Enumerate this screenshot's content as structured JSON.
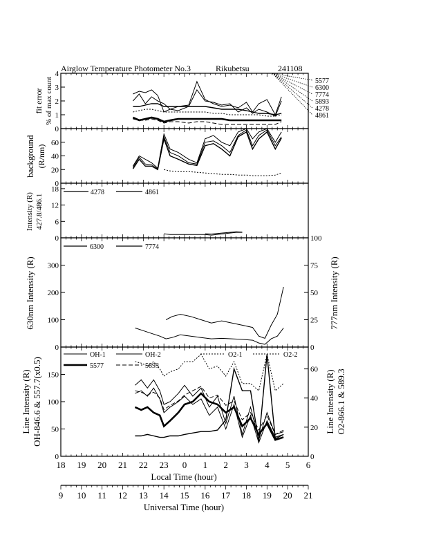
{
  "header": {
    "title": "Airglow Temperature Photometer No.3",
    "station": "Rikubetsu",
    "date": "241108"
  },
  "chart_data": [
    {
      "type": "line",
      "panel": "fit-error",
      "ylabel_lines": [
        "fit error",
        "% of max count"
      ],
      "ylim": [
        0,
        4
      ],
      "yticks": [
        0,
        1,
        2,
        3,
        4
      ],
      "right_labels": [
        "5577",
        "6300",
        "7774",
        "5893",
        "4278",
        "4861"
      ],
      "x": [
        21.5,
        21.8,
        22.1,
        22.4,
        22.7,
        23.0,
        23.3,
        23.7,
        24.2,
        24.6,
        25.0,
        25.4,
        25.8,
        26.2,
        26.6,
        27.0,
        27.3,
        27.6,
        28.0,
        28.4,
        28.7
      ],
      "series": [
        {
          "values": [
            2.5,
            2.7,
            2.6,
            2.8,
            2.4,
            1.2,
            1.4,
            1.6,
            1.7,
            3.4,
            2.1,
            1.8,
            1.6,
            1.7,
            1.5,
            1.9,
            1.2,
            1.8,
            2.1,
            1.0,
            2.3
          ]
        },
        {
          "values": [
            2.0,
            2.5,
            1.8,
            2.3,
            2.0,
            1.8,
            1.4,
            1.3,
            1.6,
            2.8,
            2.0,
            1.9,
            1.7,
            1.8,
            1.2,
            1.5,
            1.1,
            1.4,
            1.2,
            0.9,
            2.0
          ]
        },
        {
          "values": [
            1.6,
            1.6,
            1.7,
            1.8,
            1.8,
            1.6,
            1.6,
            1.6,
            1.6,
            1.6,
            1.6,
            1.5,
            1.4,
            1.4,
            1.4,
            1.3,
            1.2,
            1.1,
            1.1,
            1.0,
            1.1
          ]
        },
        {
          "values": [
            1.2,
            1.3,
            1.4,
            1.4,
            1.3,
            1.2,
            1.2,
            1.2,
            1.2,
            1.2,
            1.2,
            1.1,
            1.1,
            1.0,
            1.0,
            1.0,
            1.0,
            1.0,
            0.9,
            0.9,
            1.0
          ]
        },
        {
          "values": [
            0.8,
            0.6,
            0.7,
            0.8,
            0.7,
            0.5,
            0.6,
            0.7,
            0.7,
            0.7,
            0.7,
            0.7,
            0.7,
            0.6,
            0.6,
            0.6,
            0.6,
            0.6,
            0.6,
            0.6,
            0.6
          ]
        },
        {
          "values": [
            0.7,
            0.6,
            0.6,
            0.7,
            0.6,
            0.4,
            0.5,
            0.5,
            0.4,
            0.5,
            0.5,
            0.4,
            0.3,
            0.3,
            0.3,
            0.3,
            0.3,
            0.3,
            0.3,
            0.3,
            0.5
          ]
        }
      ]
    },
    {
      "type": "line",
      "panel": "background",
      "ylabel_lines": [
        "background",
        "(R/nm)"
      ],
      "ylim": [
        0,
        80
      ],
      "yticks": [
        0,
        20,
        40,
        60
      ],
      "x": [
        21.5,
        21.8,
        22.1,
        22.4,
        22.7,
        23.0,
        23.3,
        23.7,
        24.2,
        24.6,
        25.0,
        25.4,
        25.8,
        26.2,
        26.6,
        27.0,
        27.3,
        27.6,
        28.0,
        28.4,
        28.7
      ],
      "series": [
        {
          "values": [
            25,
            40,
            35,
            30,
            22,
            72,
            50,
            45,
            35,
            30,
            65,
            70,
            60,
            55,
            75,
            80,
            65,
            75,
            80,
            60,
            75
          ]
        },
        {
          "values": [
            23,
            38,
            28,
            27,
            21,
            68,
            45,
            40,
            30,
            28,
            60,
            62,
            55,
            45,
            70,
            78,
            55,
            70,
            78,
            55,
            68
          ]
        },
        {
          "values": [
            21,
            35,
            25,
            25,
            20,
            65,
            40,
            35,
            28,
            26,
            55,
            58,
            50,
            40,
            68,
            75,
            50,
            65,
            75,
            50,
            66
          ]
        },
        {
          "values": [
            null,
            null,
            null,
            null,
            null,
            20,
            18,
            17,
            17,
            16,
            15,
            14,
            13,
            13,
            12,
            12,
            11,
            11,
            11,
            12,
            15
          ]
        }
      ]
    },
    {
      "type": "line",
      "panel": "blue-lines",
      "ylabel_lines": [
        "Intensity (R)",
        "427.8/486.1"
      ],
      "ylim": [
        0,
        20
      ],
      "yticks": [
        0,
        6,
        12,
        18
      ],
      "legend": [
        "4278",
        "4861"
      ],
      "x": [
        23.0,
        23.3,
        25.0,
        25.3,
        26.5,
        26.8
      ],
      "series": [
        {
          "values": [
            1.5,
            1.2,
            1.2,
            1.0,
            2.0,
            2.0
          ]
        },
        {
          "values": [
            null,
            null,
            1.5,
            1.4,
            2.2,
            2.1
          ]
        }
      ]
    },
    {
      "type": "line",
      "panel": "red-lines",
      "ylabel_left": "630nm Intensity (R)",
      "ylabel_right": "777nm Intensity (R)",
      "ylim_left": [
        0,
        400
      ],
      "yticks_left": [
        0,
        100,
        200,
        300
      ],
      "ylim_right": [
        0,
        100
      ],
      "yticks_right": [
        0,
        25,
        50,
        75,
        100
      ],
      "legend": [
        "6300",
        "7774"
      ],
      "x": [
        21.6,
        22.0,
        22.4,
        22.8,
        23.1,
        23.4,
        23.8,
        24.3,
        24.8,
        25.3,
        25.8,
        26.3,
        26.8,
        27.3,
        27.6,
        27.9,
        28.2,
        28.5,
        28.8
      ],
      "series": [
        {
          "values": [
            70,
            60,
            50,
            40,
            30,
            35,
            45,
            40,
            35,
            30,
            32,
            30,
            28,
            25,
            15,
            10,
            30,
            40,
            70
          ]
        },
        {
          "values": [
            null,
            null,
            null,
            null,
            25,
            28,
            30,
            28,
            25,
            22,
            24,
            22,
            20,
            18,
            10,
            8,
            20,
            30,
            55
          ]
        }
      ]
    },
    {
      "type": "line",
      "panel": "oh-o2-na",
      "ylabel_left_lines": [
        "Line Intensity (R)",
        "OH-846.6 & 557.7(x0.5)"
      ],
      "ylabel_right_lines": [
        "Line Intensity (R)",
        "O2-866.1 & 589.3"
      ],
      "ylim_left": [
        0,
        200
      ],
      "yticks_left": [
        0,
        50,
        100,
        150
      ],
      "ylim_right": [
        0,
        75
      ],
      "yticks_right": [
        0,
        20,
        40,
        60
      ],
      "legend": [
        "OH-1",
        "OH-2",
        "O2-1",
        "O2-2",
        "5577",
        "5893"
      ],
      "x": [
        21.6,
        21.9,
        22.2,
        22.5,
        22.8,
        23.0,
        23.3,
        23.7,
        24.0,
        24.4,
        24.8,
        25.2,
        25.6,
        26.0,
        26.4,
        26.8,
        27.2,
        27.6,
        28.0,
        28.4,
        28.8
      ],
      "series": [
        {
          "values": [
            130,
            140,
            125,
            140,
            120,
            95,
            100,
            115,
            130,
            110,
            125,
            90,
            110,
            60,
            110,
            40,
            90,
            30,
            80,
            40,
            45
          ]
        },
        {
          "values": [
            115,
            120,
            110,
            125,
            105,
            80,
            90,
            100,
            110,
            95,
            105,
            75,
            90,
            50,
            95,
            35,
            75,
            25,
            65,
            35,
            40
          ]
        },
        {
          "values": [
            14,
            14,
            15,
            14,
            13,
            13,
            14,
            14,
            15,
            16,
            17,
            17,
            18,
            25,
            60,
            45,
            45,
            10,
            70,
            12,
            15
          ]
        },
        {
          "values": [
            65,
            64,
            62,
            65,
            60,
            55,
            58,
            60,
            65,
            65,
            70,
            60,
            62,
            55,
            65,
            50,
            50,
            45,
            70,
            45,
            50
          ]
        },
        {
          "values": [
            90,
            85,
            90,
            80,
            75,
            55,
            65,
            80,
            95,
            100,
            115,
            100,
            95,
            80,
            90,
            55,
            70,
            40,
            60,
            30,
            35
          ]
        },
        {
          "values": [
            45,
            44,
            42,
            44,
            40,
            32,
            35,
            38,
            42,
            45,
            48,
            40,
            42,
            35,
            38,
            25,
            30,
            18,
            28,
            15,
            18
          ]
        }
      ]
    }
  ],
  "axes": {
    "local_time_ticks": [
      "18",
      "19",
      "20",
      "21",
      "22",
      "23",
      "0",
      "1",
      "2",
      "3",
      "4",
      "5",
      "6"
    ],
    "local_time_label": "Local Time (hour)",
    "ut_ticks": [
      "9",
      "10",
      "11",
      "12",
      "13",
      "14",
      "15",
      "16",
      "17",
      "18",
      "19",
      "20",
      "21"
    ],
    "ut_label": "Universal Time (hour)"
  },
  "colors": {
    "ink": "#000000",
    "background": "#ffffff"
  }
}
